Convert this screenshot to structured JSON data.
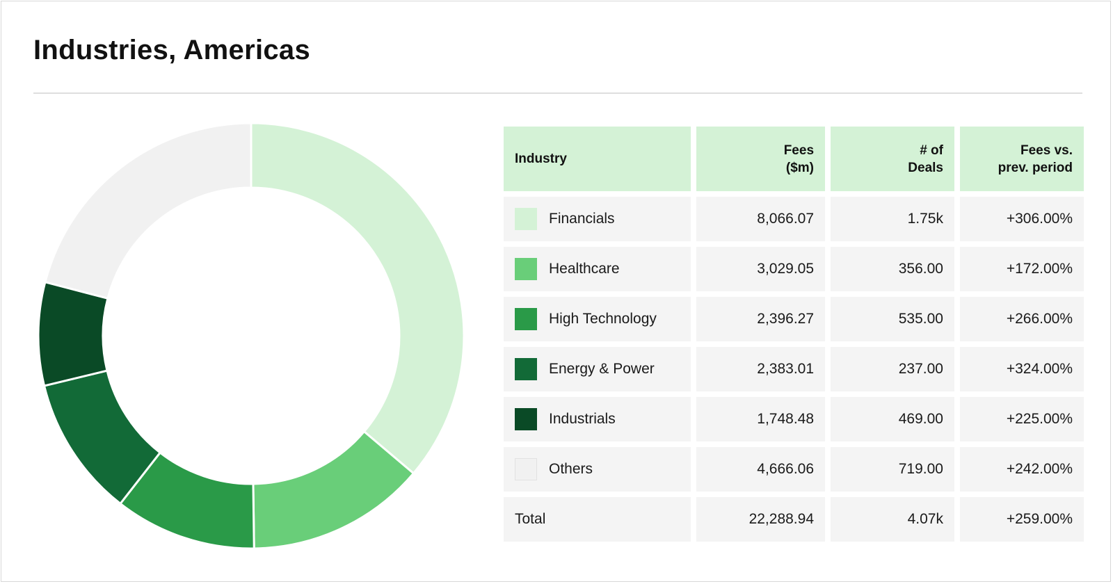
{
  "title": "Industries, Americas",
  "colors": {
    "Financials": "#d4f2d6",
    "Healthcare": "#69ce79",
    "High Technology": "#2a9a48",
    "Energy & Power": "#126a37",
    "Industrials": "#0a4a26",
    "Others": "#f1f1f1",
    "header_bg": "#d4f2d6",
    "cell_bg": "#f4f4f4"
  },
  "table": {
    "headers": {
      "industry": "Industry",
      "fees_line1": "Fees",
      "fees_line2": "($m)",
      "deals_line1": "# of",
      "deals_line2": "Deals",
      "change_line1": "Fees vs.",
      "change_line2": "prev. period"
    },
    "rows": [
      {
        "industry": "Financials",
        "fees": "8,066.07",
        "deals": "1.75k",
        "change": "+306.00%"
      },
      {
        "industry": "Healthcare",
        "fees": "3,029.05",
        "deals": "356.00",
        "change": "+172.00%"
      },
      {
        "industry": "High Technology",
        "fees": "2,396.27",
        "deals": "535.00",
        "change": "+266.00%"
      },
      {
        "industry": "Energy & Power",
        "fees": "2,383.01",
        "deals": "237.00",
        "change": "+324.00%"
      },
      {
        "industry": "Industrials",
        "fees": "1,748.48",
        "deals": "469.00",
        "change": "+225.00%"
      },
      {
        "industry": "Others",
        "fees": "4,666.06",
        "deals": "719.00",
        "change": "+242.00%"
      }
    ],
    "total": {
      "label": "Total",
      "fees": "22,288.94",
      "deals": "4.07k",
      "change": "+259.00%"
    }
  },
  "chart_data": {
    "type": "pie",
    "title": "Industries, Americas",
    "categories": [
      "Financials",
      "Healthcare",
      "High Technology",
      "Energy & Power",
      "Industrials",
      "Others"
    ],
    "values": [
      8066.07,
      3029.05,
      2396.27,
      2383.01,
      1748.48,
      4666.06
    ],
    "total": 22288.94,
    "unit": "$m",
    "legend": "table-right",
    "donut": true
  }
}
